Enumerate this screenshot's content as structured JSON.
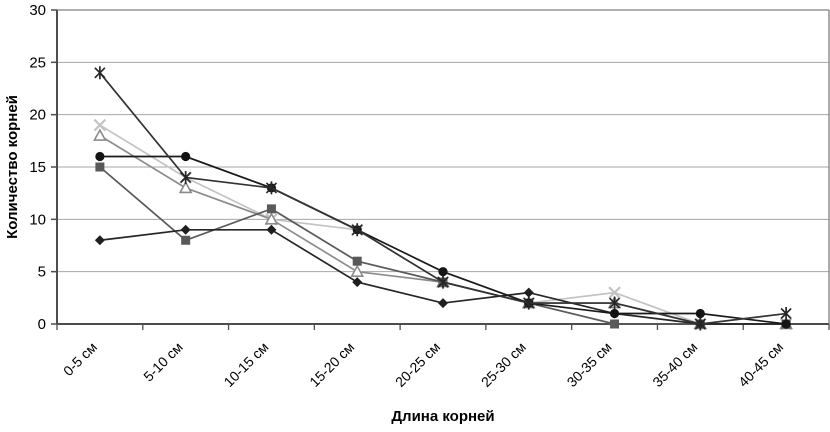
{
  "chart_data": {
    "type": "line",
    "title": "",
    "xlabel": "Длина корней",
    "ylabel": "Количество корней",
    "categories": [
      "0-5 см",
      "5-10 см",
      "10-15 см",
      "15-20 см",
      "20-25 см",
      "25-30 см",
      "30-35 см",
      "35-40 см",
      "40-45 см"
    ],
    "ylim": [
      0,
      30
    ],
    "yticks": [
      0,
      5,
      10,
      15,
      20,
      25,
      30
    ],
    "grid": "horizontal",
    "grid_color": "#a6a6a6",
    "axis_color": "#4d4d4d",
    "border_color": "#808080",
    "legend_position": "none",
    "series": [
      {
        "name": "x-series",
        "marker": "x",
        "color": "#c3c3c3",
        "line_color": "#c3c3c3",
        "values": [
          19,
          14,
          10,
          9,
          4,
          2,
          3,
          0,
          0
        ]
      },
      {
        "name": "triangle-series",
        "marker": "triangle",
        "color": "#8c8c8c",
        "line_color": "#8c8c8c",
        "values": [
          18,
          13,
          10,
          5,
          4,
          2,
          2,
          0,
          0
        ]
      },
      {
        "name": "square-series",
        "marker": "square",
        "color": "#595959",
        "line_color": "#595959",
        "values": [
          15,
          8,
          11,
          6,
          4,
          2,
          0,
          0,
          0
        ]
      },
      {
        "name": "diamond-series",
        "marker": "diamond",
        "color": "#1f1f1f",
        "line_color": "#262626",
        "values": [
          8,
          9,
          9,
          4,
          2,
          3,
          1,
          0,
          0
        ]
      },
      {
        "name": "circle-series",
        "marker": "circle",
        "color": "#141414",
        "line_color": "#1a1a1a",
        "values": [
          16,
          16,
          13,
          9,
          5,
          2,
          1,
          1,
          0
        ]
      },
      {
        "name": "asterisk-series",
        "marker": "asterisk",
        "color": "#262626",
        "line_color": "#333333",
        "values": [
          24,
          14,
          13,
          9,
          4,
          2,
          2,
          0,
          1
        ]
      }
    ]
  }
}
